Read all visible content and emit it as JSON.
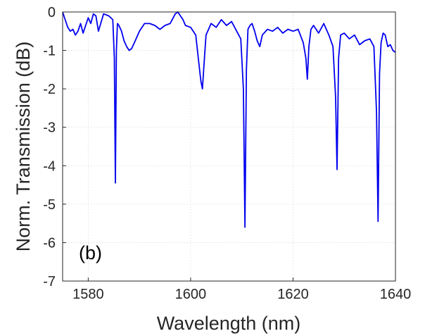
{
  "chart_data": {
    "type": "line",
    "title": "",
    "panel_label": "(b)",
    "xlabel": "Wavelength (nm)",
    "ylabel": "Norm. Transmission (dB)",
    "xlim": [
      1575,
      1640
    ],
    "ylim": [
      -7,
      0
    ],
    "xticks": [
      1580,
      1600,
      1620,
      1640
    ],
    "yticks": [
      0,
      -1,
      -2,
      -3,
      -4,
      -5,
      -6,
      -7
    ],
    "grid": true,
    "line_color": "#0000ee",
    "series": [
      {
        "x": [
          1575.0,
          1575.5,
          1576.0,
          1576.5,
          1577.0,
          1577.5,
          1578.0,
          1578.5,
          1579.0,
          1579.5,
          1580.0,
          1580.5,
          1581.0,
          1581.5,
          1582.0,
          1583.0,
          1584.0,
          1584.8,
          1585.1,
          1585.3,
          1585.5,
          1585.7,
          1586.0,
          1586.5,
          1587.0,
          1587.5,
          1588.0,
          1588.5,
          1589.0,
          1590.0,
          1591.0,
          1592.0,
          1593.0,
          1594.0,
          1595.0,
          1596.0,
          1597.0,
          1597.5,
          1598.0,
          1598.5,
          1599.0,
          1600.0,
          1601.0,
          1601.5,
          1602.0,
          1602.3,
          1602.6,
          1603.0,
          1603.5,
          1604.0,
          1605.0,
          1606.0,
          1607.0,
          1608.0,
          1609.0,
          1609.8,
          1610.3,
          1610.6,
          1610.9,
          1611.2,
          1611.6,
          1612.0,
          1612.5,
          1613.0,
          1613.5,
          1614.0,
          1615.0,
          1616.0,
          1617.0,
          1618.0,
          1619.0,
          1620.0,
          1621.0,
          1622.0,
          1622.5,
          1622.8,
          1623.1,
          1623.5,
          1624.0,
          1625.0,
          1626.0,
          1627.0,
          1627.8,
          1628.3,
          1628.6,
          1628.9,
          1629.3,
          1630.0,
          1631.0,
          1632.0,
          1633.0,
          1634.0,
          1635.0,
          1635.8,
          1636.3,
          1636.6,
          1636.9,
          1637.2,
          1637.6,
          1638.0,
          1638.5,
          1639.0,
          1639.5,
          1640.0
        ],
        "y": [
          0.0,
          -0.2,
          -0.4,
          -0.5,
          -0.45,
          -0.6,
          -0.5,
          -0.3,
          -0.55,
          -0.35,
          -0.15,
          -0.3,
          -0.05,
          -0.1,
          -0.5,
          -0.05,
          -0.1,
          -0.2,
          -1.2,
          -4.45,
          -1.0,
          -0.3,
          -0.35,
          -0.5,
          -0.75,
          -0.9,
          -1.0,
          -0.95,
          -0.8,
          -0.5,
          -0.3,
          -0.3,
          -0.35,
          -0.45,
          -0.35,
          -0.3,
          -0.05,
          0.0,
          -0.1,
          -0.2,
          -0.35,
          -0.4,
          -0.6,
          -1.2,
          -1.8,
          -2.0,
          -1.4,
          -0.6,
          -0.45,
          -0.3,
          -0.4,
          -0.2,
          -0.35,
          -0.25,
          -0.5,
          -0.7,
          -2.0,
          -5.6,
          -1.5,
          -0.45,
          -0.35,
          -0.3,
          -0.5,
          -0.75,
          -0.9,
          -0.6,
          -0.45,
          -0.5,
          -0.4,
          -0.55,
          -0.45,
          -0.5,
          -0.45,
          -0.8,
          -1.2,
          -1.75,
          -0.9,
          -0.45,
          -0.35,
          -0.55,
          -0.3,
          -0.6,
          -0.9,
          -2.2,
          -4.1,
          -1.2,
          -0.6,
          -0.55,
          -0.7,
          -0.6,
          -0.85,
          -0.75,
          -0.7,
          -0.9,
          -2.6,
          -5.45,
          -1.6,
          -0.8,
          -0.55,
          -0.6,
          -0.9,
          -0.85,
          -1.0,
          -1.05
        ]
      }
    ]
  }
}
